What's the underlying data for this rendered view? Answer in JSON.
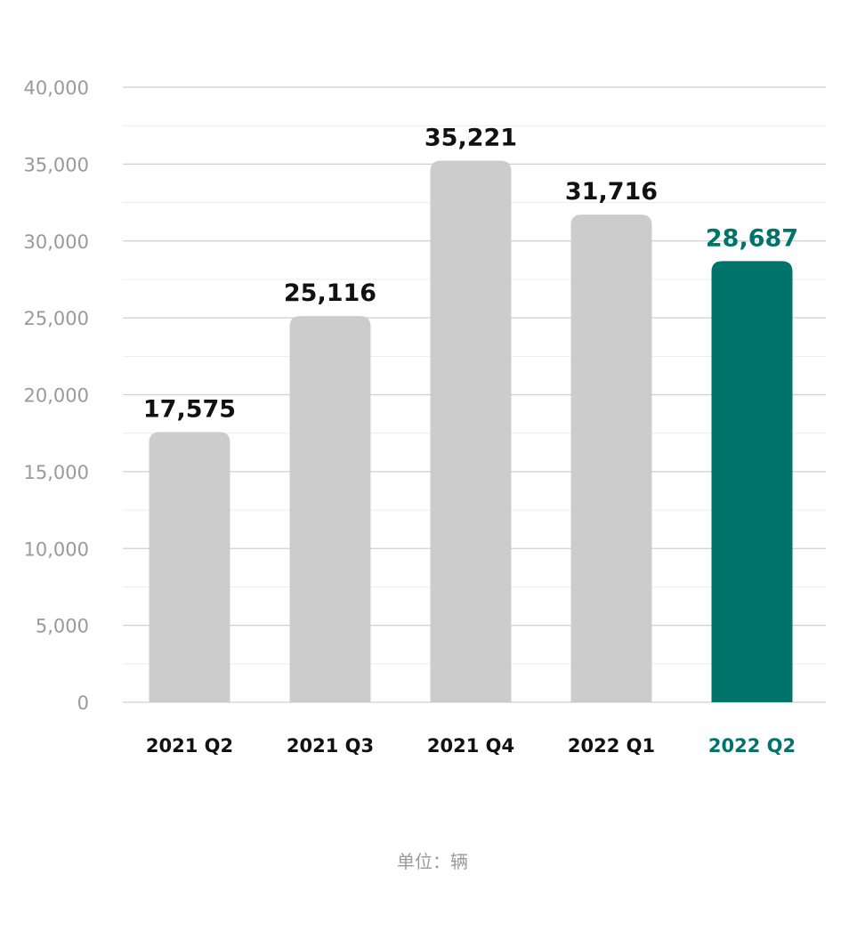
{
  "chart_data": {
    "type": "bar",
    "categories": [
      "2021 Q2",
      "2021 Q3",
      "2021 Q4",
      "2022 Q1",
      "2022 Q2"
    ],
    "values": [
      17575,
      25116,
      35221,
      31716,
      28687
    ],
    "data_labels": [
      "17,575",
      "25,116",
      "35,221",
      "31,716",
      "28,687"
    ],
    "highlight_index": 4,
    "ylim": [
      0,
      40000
    ],
    "yticks": [
      0,
      5000,
      10000,
      15000,
      20000,
      25000,
      30000,
      35000,
      40000
    ],
    "ytick_labels": [
      "0",
      "5,000",
      "10,000",
      "15,000",
      "20,000",
      "25,000",
      "30,000",
      "35,000",
      "40,000"
    ],
    "grid": true,
    "colors": {
      "bar": "#cccccc",
      "highlight": "#00736b",
      "label": "#111111",
      "tick": "#9a9a9a",
      "grid_major": "#cfcfcf",
      "grid_minor": "#ececec"
    }
  },
  "unit_note": "单位：辆"
}
